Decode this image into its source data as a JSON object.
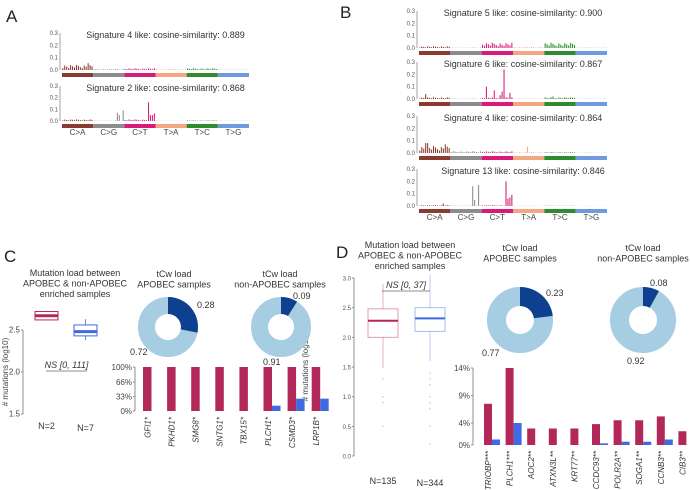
{
  "panels": {
    "A": {
      "label": "A"
    },
    "B": {
      "label": "B"
    },
    "C": {
      "label": "C"
    },
    "D": {
      "label": "D"
    }
  },
  "colors": {
    "apobec": "#b3285a",
    "non_apobec": "#4169e1",
    "donut_light": "#a6cde2",
    "donut_dark": "#0d4190",
    "classes": [
      "#8b3a30",
      "#8c8c8c",
      "#d81b7a",
      "#f4a582",
      "#2e8b2e",
      "#6f9ae0"
    ]
  },
  "signature_classes": [
    "C>A",
    "C>G",
    "C>T",
    "T>A",
    "T>C",
    "T>G"
  ],
  "chart_data": [
    {
      "type": "bar",
      "panel": "A",
      "title": "Signature 4 like: cosine-similarity: 0.889",
      "yticks": [
        "0.0",
        "0.1",
        "0.2",
        "0.3"
      ],
      "ylim": [
        0,
        0.3
      ],
      "baseline": [
        0.03,
        0.005,
        0.01,
        0.005,
        0.01,
        0.002
      ],
      "peaks": [
        [
          4,
          0.04
        ],
        [
          7,
          0.04
        ],
        [
          13,
          0.055
        ]
      ]
    },
    {
      "type": "bar",
      "panel": "A",
      "title": "Signature 2 like: cosine-similarity: 0.868",
      "yticks": [
        "0.0",
        "0.1",
        "0.2",
        "0.3"
      ],
      "ylim": [
        0,
        0.3
      ],
      "baseline": [
        0.01,
        0.002,
        0.01,
        0.002,
        0.004,
        0.002
      ],
      "peaks": [
        [
          28,
          0.07
        ],
        [
          29,
          0.05
        ],
        [
          31,
          0.09
        ],
        [
          44,
          0.16
        ],
        [
          45,
          0.05
        ],
        [
          46,
          0.05
        ],
        [
          47,
          0.065
        ]
      ]
    },
    {
      "type": "bar",
      "panel": "B",
      "title": "Signature 5 like: cosine-similarity: 0.900",
      "yticks": [
        "0.0",
        "0.1",
        "0.2",
        "0.3"
      ],
      "ylim": [
        0,
        0.3
      ],
      "baseline": [
        0.01,
        0.002,
        0.03,
        0.005,
        0.03,
        0.002
      ],
      "peaks": []
    },
    {
      "type": "bar",
      "panel": "B",
      "title": "Signature 6 like: cosine-similarity: 0.867",
      "yticks": [
        "0.0",
        "0.1",
        "0.2",
        "0.3"
      ],
      "ylim": [
        0,
        0.3
      ],
      "baseline": [
        0.01,
        0.002,
        0.01,
        0.003,
        0.01,
        0.002
      ],
      "peaks": [
        [
          3,
          0.04
        ],
        [
          34,
          0.1
        ],
        [
          38,
          0.07
        ],
        [
          41,
          0.03
        ],
        [
          42,
          0.06
        ],
        [
          43,
          0.24
        ],
        [
          46,
          0.05
        ],
        [
          68,
          0.02
        ]
      ]
    },
    {
      "type": "bar",
      "panel": "B",
      "title": "Signature 4 like: cosine-similarity: 0.864",
      "yticks": [
        "0.0",
        "0.1",
        "0.2",
        "0.3"
      ],
      "ylim": [
        0,
        0.3
      ],
      "baseline": [
        0.04,
        0.01,
        0.01,
        0.005,
        0.005,
        0.002
      ],
      "peaks": [
        [
          3,
          0.08
        ],
        [
          4,
          0.08
        ],
        [
          13,
          0.07
        ],
        [
          55,
          0.05
        ]
      ]
    },
    {
      "type": "bar",
      "panel": "B",
      "title": "Signature 13 like: cosine-similarity: 0.846",
      "yticks": [
        "0.0",
        "0.1",
        "0.2",
        "0.3"
      ],
      "ylim": [
        0,
        0.3
      ],
      "baseline": [
        0.005,
        0.002,
        0.005,
        0.002,
        0.002,
        0.001
      ],
      "peaks": [
        [
          12,
          0.02
        ],
        [
          27,
          0.16
        ],
        [
          28,
          0.05
        ],
        [
          30,
          0.17
        ],
        [
          44,
          0.2
        ],
        [
          45,
          0.06
        ],
        [
          46,
          0.07
        ],
        [
          47,
          0.09
        ]
      ]
    },
    {
      "type": "box",
      "panel": "C",
      "title": [
        "Mutation load between",
        "APOBEC & non-APOBEC",
        "enriched samples"
      ],
      "ylabel": "# mutations (log10)",
      "yticks": [
        "1.5",
        "2.0",
        "2.5"
      ],
      "ylim": [
        1.5,
        2.5
      ],
      "annotation": "NS [0, 111]",
      "groups": [
        {
          "n_label": "N=2",
          "q1": 2.62,
          "median": 2.67,
          "q3": 2.72,
          "whisker_low": 2.62,
          "whisker_high": 2.72
        },
        {
          "n_label": "N=7",
          "q1": 2.43,
          "median": 2.48,
          "q3": 2.56,
          "whisker_low": 2.38,
          "whisker_high": 2.63
        }
      ]
    },
    {
      "type": "pie",
      "panel": "C",
      "title": [
        "tCw load",
        "APOBEC samples"
      ],
      "values": [
        0.28,
        0.72
      ],
      "labels": [
        "0.28",
        "0.72"
      ]
    },
    {
      "type": "pie",
      "panel": "C",
      "title": [
        "tCw load",
        "non-APOBEC samples"
      ],
      "values": [
        0.09,
        0.91
      ],
      "labels": [
        "0.09",
        "0.91"
      ]
    },
    {
      "type": "bar",
      "panel": "C",
      "yticks": [
        "0%",
        "33%",
        "66%",
        "100%"
      ],
      "ylim": [
        0,
        100
      ],
      "categories": [
        "GFI1*",
        "PKHD1*",
        "SMG8*",
        "SNTG1*",
        "TBX15*",
        "PLCH1*",
        "CSMD3*",
        "LRP1B*"
      ],
      "series": [
        {
          "values": [
            100,
            100,
            100,
            100,
            100,
            100,
            100,
            100
          ]
        },
        {
          "values": [
            0,
            0,
            0,
            0,
            0,
            12,
            28,
            28
          ]
        }
      ]
    },
    {
      "type": "box",
      "panel": "D",
      "title": [
        "Mutation load between",
        "APOBEC & non-APOBEC",
        "enriched samples"
      ],
      "ylabel": "# mutations (log10)",
      "yticks": [
        "0.0",
        "0.5",
        "1.0",
        "1.5",
        "2.0",
        "2.5",
        "3.0"
      ],
      "ylim": [
        0,
        3
      ],
      "annotation": "NS [0, 37]",
      "groups": [
        {
          "n_label": "N=135",
          "q1": 2.0,
          "median": 2.28,
          "q3": 2.48,
          "whisker_low": 1.48,
          "whisker_high": 2.9,
          "outliers": [
            1.3,
            1.0,
            0.9,
            0.5
          ]
        },
        {
          "n_label": "N=344",
          "q1": 2.1,
          "median": 2.32,
          "q3": 2.5,
          "whisker_low": 1.6,
          "whisker_high": 3.05,
          "outliers": [
            1.4,
            1.3,
            1.2,
            1.0,
            0.9,
            0.8,
            0.5,
            0.2
          ]
        }
      ]
    },
    {
      "type": "pie",
      "panel": "D",
      "title": [
        "tCw load",
        "APOBEC samples"
      ],
      "values": [
        0.23,
        0.77
      ],
      "labels": [
        "0.23",
        "0.77"
      ]
    },
    {
      "type": "pie",
      "panel": "D",
      "title": [
        "tCw load",
        "non-APOBEC samples"
      ],
      "values": [
        0.08,
        0.92
      ],
      "labels": [
        "0.08",
        "0.92"
      ]
    },
    {
      "type": "bar",
      "panel": "D",
      "yticks": [
        "0%",
        "4%",
        "9%",
        "14%"
      ],
      "ylim": [
        0,
        14
      ],
      "categories": [
        "TRIOBP***",
        "PLCH1***",
        "AOC2**",
        "ATXN3L**",
        "KRT77**",
        "CCDC93**",
        "POLR2A**",
        "SOGA1**",
        "CCNB3**",
        "CIB3**"
      ],
      "series": [
        {
          "values": [
            7.5,
            14,
            3,
            3,
            3,
            3.8,
            4.5,
            4.5,
            5.2,
            2.5
          ]
        },
        {
          "values": [
            1.0,
            4.0,
            0,
            0,
            0,
            0.3,
            0.6,
            0.6,
            1.0,
            0
          ]
        }
      ]
    }
  ]
}
